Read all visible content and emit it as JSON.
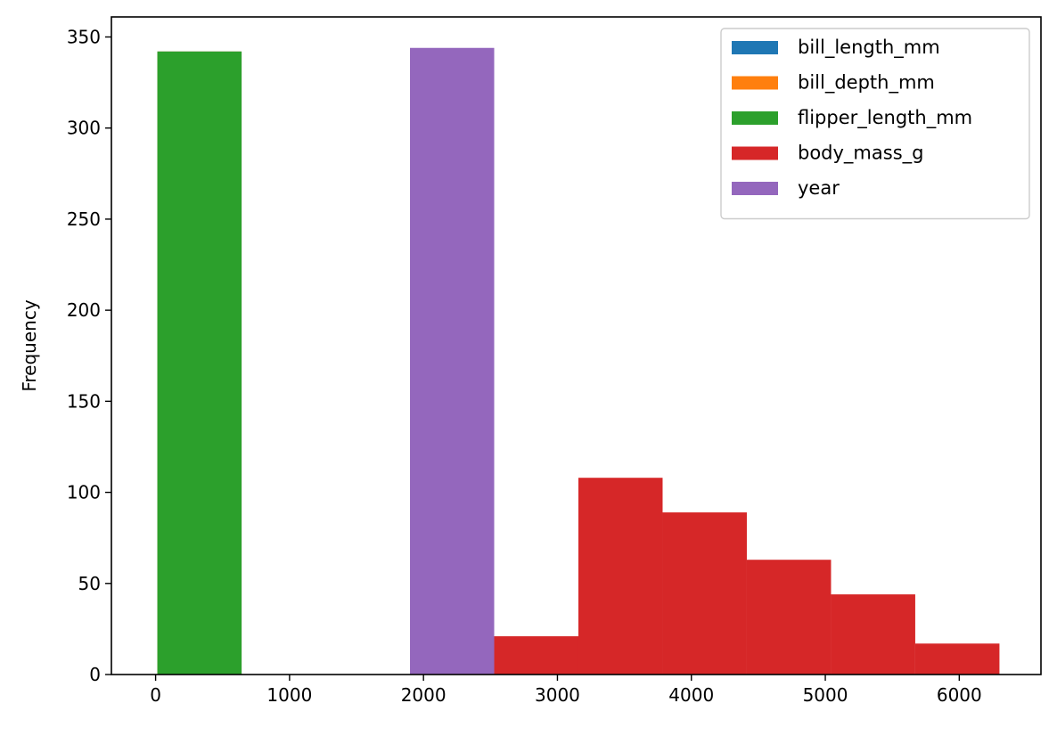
{
  "chart_data": {
    "type": "bar",
    "title": "",
    "xlabel": "",
    "ylabel": "Frequency",
    "xlim": [
      -330,
      6610
    ],
    "ylim": [
      0,
      361
    ],
    "x_ticks": [
      0,
      1000,
      2000,
      3000,
      4000,
      5000,
      6000
    ],
    "y_ticks": [
      0,
      50,
      100,
      150,
      200,
      250,
      300,
      350
    ],
    "grid": false,
    "legend_position": "top-right",
    "series": [
      {
        "name": "bill_length_mm",
        "color": "#1f77b4",
        "bins": [
          {
            "x0": 13.1,
            "x1": 641.8,
            "count": 342
          },
          {
            "x0": 641.8,
            "x1": 1270.5,
            "count": 0
          },
          {
            "x0": 1270.5,
            "x1": 1899.2,
            "count": 0
          },
          {
            "x0": 1899.2,
            "x1": 2527.9,
            "count": 0
          },
          {
            "x0": 2527.9,
            "x1": 3156.6,
            "count": 0
          },
          {
            "x0": 3156.6,
            "x1": 3785.3,
            "count": 0
          },
          {
            "x0": 3785.3,
            "x1": 4414.0,
            "count": 0
          },
          {
            "x0": 4414.0,
            "x1": 5042.7,
            "count": 0
          },
          {
            "x0": 5042.7,
            "x1": 5671.4,
            "count": 0
          },
          {
            "x0": 5671.4,
            "x1": 6300.1,
            "count": 0
          }
        ]
      },
      {
        "name": "bill_depth_mm",
        "color": "#ff7f0e",
        "bins": [
          {
            "x0": 13.1,
            "x1": 641.8,
            "count": 342
          },
          {
            "x0": 641.8,
            "x1": 1270.5,
            "count": 0
          },
          {
            "x0": 1270.5,
            "x1": 1899.2,
            "count": 0
          },
          {
            "x0": 1899.2,
            "x1": 2527.9,
            "count": 0
          },
          {
            "x0": 2527.9,
            "x1": 3156.6,
            "count": 0
          },
          {
            "x0": 3156.6,
            "x1": 3785.3,
            "count": 0
          },
          {
            "x0": 3785.3,
            "x1": 4414.0,
            "count": 0
          },
          {
            "x0": 4414.0,
            "x1": 5042.7,
            "count": 0
          },
          {
            "x0": 5042.7,
            "x1": 5671.4,
            "count": 0
          },
          {
            "x0": 5671.4,
            "x1": 6300.1,
            "count": 0
          }
        ]
      },
      {
        "name": "flipper_length_mm",
        "color": "#2ca02c",
        "bins": [
          {
            "x0": 13.1,
            "x1": 641.8,
            "count": 342
          },
          {
            "x0": 641.8,
            "x1": 1270.5,
            "count": 0
          },
          {
            "x0": 1270.5,
            "x1": 1899.2,
            "count": 0
          },
          {
            "x0": 1899.2,
            "x1": 2527.9,
            "count": 0
          },
          {
            "x0": 2527.9,
            "x1": 3156.6,
            "count": 0
          },
          {
            "x0": 3156.6,
            "x1": 3785.3,
            "count": 0
          },
          {
            "x0": 3785.3,
            "x1": 4414.0,
            "count": 0
          },
          {
            "x0": 4414.0,
            "x1": 5042.7,
            "count": 0
          },
          {
            "x0": 5042.7,
            "x1": 5671.4,
            "count": 0
          },
          {
            "x0": 5671.4,
            "x1": 6300.1,
            "count": 0
          }
        ]
      },
      {
        "name": "body_mass_g",
        "color": "#d62728",
        "bins": [
          {
            "x0": 13.1,
            "x1": 641.8,
            "count": 0
          },
          {
            "x0": 641.8,
            "x1": 1270.5,
            "count": 0
          },
          {
            "x0": 1270.5,
            "x1": 1899.2,
            "count": 0
          },
          {
            "x0": 1899.2,
            "x1": 2527.9,
            "count": 0
          },
          {
            "x0": 2527.9,
            "x1": 3156.6,
            "count": 21
          },
          {
            "x0": 3156.6,
            "x1": 3785.3,
            "count": 108
          },
          {
            "x0": 3785.3,
            "x1": 4414.0,
            "count": 89
          },
          {
            "x0": 4414.0,
            "x1": 5042.7,
            "count": 63
          },
          {
            "x0": 5042.7,
            "x1": 5671.4,
            "count": 44
          },
          {
            "x0": 5671.4,
            "x1": 6300.1,
            "count": 17
          }
        ]
      },
      {
        "name": "year",
        "color": "#9467bd",
        "bins": [
          {
            "x0": 13.1,
            "x1": 641.8,
            "count": 0
          },
          {
            "x0": 641.8,
            "x1": 1270.5,
            "count": 0
          },
          {
            "x0": 1270.5,
            "x1": 1899.2,
            "count": 0
          },
          {
            "x0": 1899.2,
            "x1": 2527.9,
            "count": 344
          },
          {
            "x0": 2527.9,
            "x1": 3156.6,
            "count": 0
          },
          {
            "x0": 3156.6,
            "x1": 3785.3,
            "count": 0
          },
          {
            "x0": 3785.3,
            "x1": 4414.0,
            "count": 0
          },
          {
            "x0": 4414.0,
            "x1": 5042.7,
            "count": 0
          },
          {
            "x0": 5042.7,
            "x1": 5671.4,
            "count": 0
          },
          {
            "x0": 5671.4,
            "x1": 6300.1,
            "count": 0
          }
        ]
      }
    ]
  }
}
